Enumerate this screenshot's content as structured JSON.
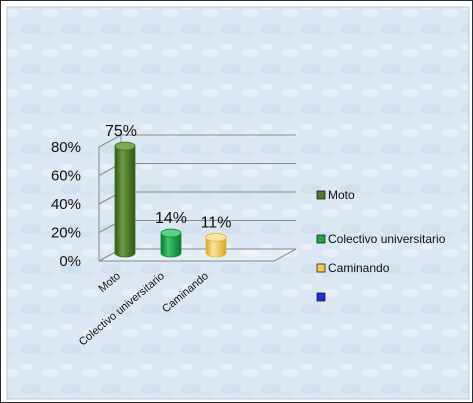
{
  "chart_data": {
    "type": "bar",
    "style": "3d-cylinder",
    "categories": [
      "Moto",
      "Colectivo universitario",
      "Caminando"
    ],
    "values": [
      75,
      14,
      11
    ],
    "data_labels": [
      "75%",
      "14%",
      "11%"
    ],
    "ylim": [
      0,
      80
    ],
    "yticks": [
      0,
      20,
      40,
      60,
      80
    ],
    "ytick_labels": [
      "0%",
      "20%",
      "40%",
      "60%",
      "80%"
    ],
    "grid": true,
    "legend_position": "right",
    "legend": [
      {
        "label": "Moto",
        "color": "#4f7a2b"
      },
      {
        "label": "Colectivo universitario",
        "color": "#1aa84a"
      },
      {
        "label": "Caminando",
        "color": "#f2c94c"
      },
      {
        "label": "",
        "color": "#1a2fd6"
      }
    ],
    "colors": {
      "moto_side": "#3c6b1e",
      "moto_light": "#6f9a45",
      "moto_top": "#7fa856",
      "colectivo_side": "#0a8a38",
      "colectivo_light": "#3ec46a",
      "colectivo_top": "#5ad384",
      "caminando_side": "#e5b63a",
      "caminando_light": "#f8dd85",
      "caminando_top": "#fbe7a0",
      "background": "#dde9f3"
    }
  }
}
